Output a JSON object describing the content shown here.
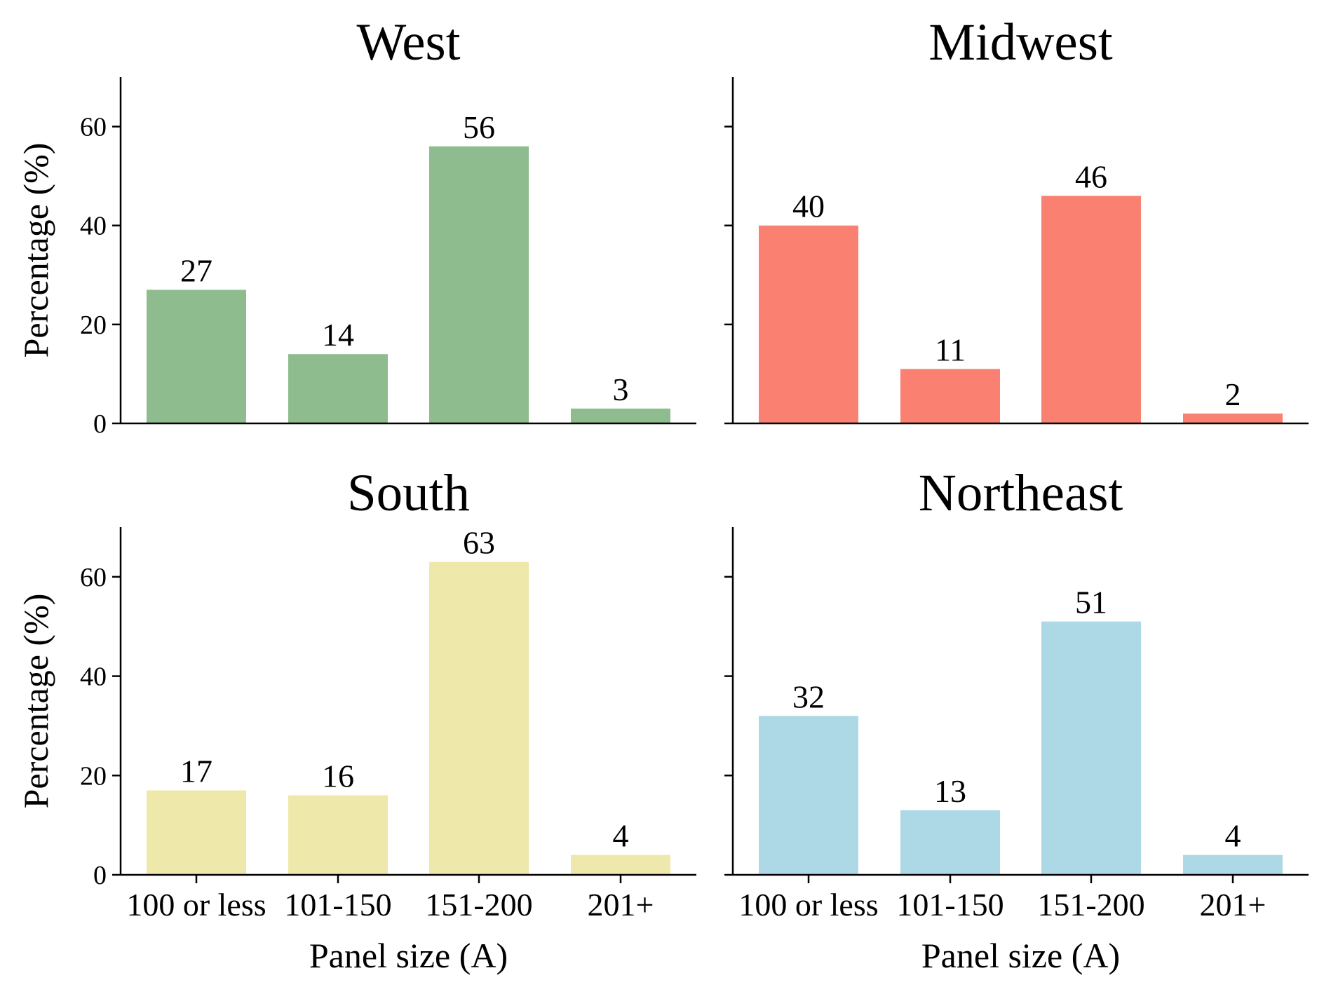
{
  "chart_data": [
    {
      "type": "bar",
      "title": "West",
      "categories": [
        "100 or less",
        "101-150",
        "151-200",
        "201+"
      ],
      "values": [
        27,
        14,
        56,
        3
      ],
      "color": "#8fbc8f",
      "ylabel": "Percentage (%)",
      "xlabel": "",
      "ylim": [
        0,
        70
      ],
      "yticks": [
        "0",
        "20",
        "40",
        "60"
      ],
      "show_xticklabels": false,
      "show_yticklabels": true
    },
    {
      "type": "bar",
      "title": "Midwest",
      "categories": [
        "100 or less",
        "101-150",
        "151-200",
        "201+"
      ],
      "values": [
        40,
        11,
        46,
        2
      ],
      "color": "#fa8072",
      "ylabel": "",
      "xlabel": "",
      "ylim": [
        0,
        70
      ],
      "yticks": [
        "0",
        "20",
        "40",
        "60"
      ],
      "show_xticklabels": false,
      "show_yticklabels": false
    },
    {
      "type": "bar",
      "title": "South",
      "categories": [
        "100 or less",
        "101-150",
        "151-200",
        "201+"
      ],
      "values": [
        17,
        16,
        63,
        4
      ],
      "color": "#eee8aa",
      "ylabel": "Percentage (%)",
      "xlabel": "Panel size (A)",
      "ylim": [
        0,
        70
      ],
      "yticks": [
        "0",
        "20",
        "40",
        "60"
      ],
      "show_xticklabels": true,
      "show_yticklabels": true
    },
    {
      "type": "bar",
      "title": "Northeast",
      "categories": [
        "100 or less",
        "101-150",
        "151-200",
        "201+"
      ],
      "values": [
        32,
        13,
        51,
        4
      ],
      "color": "#add8e6",
      "ylabel": "",
      "xlabel": "Panel size (A)",
      "ylim": [
        0,
        70
      ],
      "yticks": [
        "0",
        "20",
        "40",
        "60"
      ],
      "show_xticklabels": true,
      "show_yticklabels": false
    }
  ]
}
